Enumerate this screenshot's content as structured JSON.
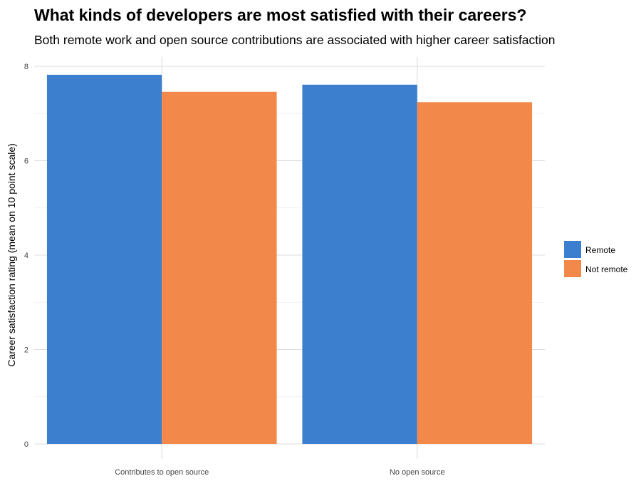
{
  "chart_data": {
    "type": "bar",
    "title": "What kinds of developers are most satisfied with their careers?",
    "subtitle": "Both remote work and open source contributions are associated with higher career satisfaction",
    "xlabel": "",
    "ylabel": "Career satisfaction rating (mean on 10 point scale)",
    "categories": [
      "Contributes to open source",
      "No open source"
    ],
    "series": [
      {
        "name": "Remote",
        "values": [
          7.82,
          7.61
        ],
        "color": "#3c7fcf"
      },
      {
        "name": "Not remote",
        "values": [
          7.46,
          7.24
        ],
        "color": "#f2894a"
      }
    ],
    "ylim": [
      0,
      8
    ],
    "yticks": [
      0,
      2,
      4,
      6,
      8
    ],
    "grid": true,
    "legend_position": "right"
  }
}
